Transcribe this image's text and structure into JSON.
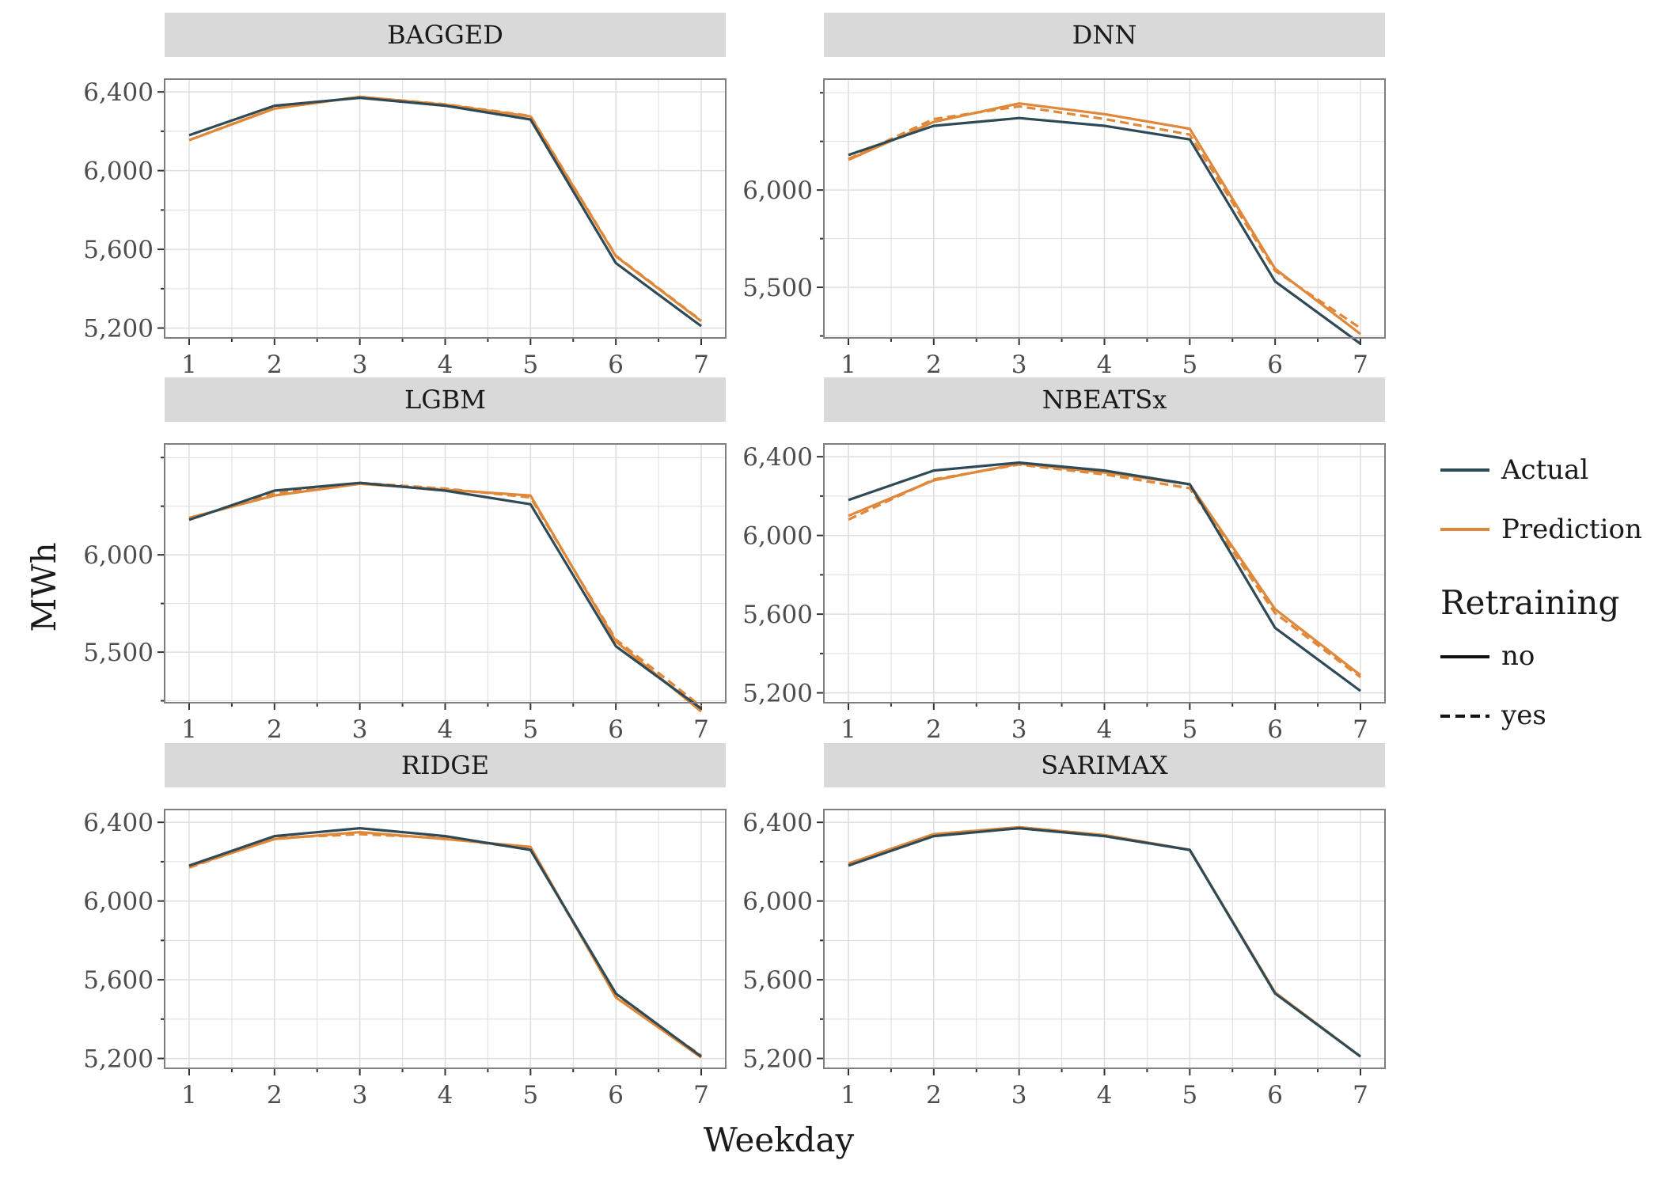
{
  "figure": {
    "xlabel": "Weekday",
    "ylabel": "MWh",
    "colors": {
      "actual": "#2e4a56",
      "prediction": "#e0883a",
      "strip": "#d9d9d9",
      "panel_border": "#7f7f7f",
      "grid": "#dedede"
    }
  },
  "legend": {
    "color_entries": [
      {
        "label": "Actual",
        "color": "#2e4a56"
      },
      {
        "label": "Prediction",
        "color": "#e0883a"
      }
    ],
    "linetype_title": "Retraining",
    "linetype_entries": [
      {
        "label": "no",
        "dash": "solid"
      },
      {
        "label": "yes",
        "dash": "dashed"
      }
    ]
  },
  "chart_data": [
    {
      "type": "line",
      "title": "BAGGED",
      "x": [
        1,
        2,
        3,
        4,
        5,
        6,
        7
      ],
      "xticks": [
        "1",
        "2",
        "3",
        "4",
        "5",
        "6",
        "7"
      ],
      "ylim": [
        5150,
        6465
      ],
      "yticks": [
        5200,
        5600,
        6000,
        6400
      ],
      "ytick_labels": [
        "5,200",
        "5,600",
        "6,000",
        "6,400"
      ],
      "series": [
        {
          "name": "Actual",
          "values": [
            6180,
            6330,
            6370,
            6330,
            6260,
            5530,
            5210
          ]
        },
        {
          "name": "Prediction",
          "retraining": "no",
          "values": [
            6155,
            6315,
            6375,
            6335,
            6275,
            5565,
            5235
          ]
        },
        {
          "name": "Prediction",
          "retraining": "yes",
          "values": [
            6155,
            6318,
            6375,
            6337,
            6278,
            5568,
            5238
          ]
        }
      ]
    },
    {
      "type": "line",
      "title": "DNN",
      "x": [
        1,
        2,
        3,
        4,
        5,
        6,
        7
      ],
      "xticks": [
        "1",
        "2",
        "3",
        "4",
        "5",
        "6",
        "7"
      ],
      "ylim": [
        5240,
        6570
      ],
      "yticks": [
        5500,
        6000
      ],
      "ytick_labels": [
        "5,500",
        "6,000"
      ],
      "series": [
        {
          "name": "Actual",
          "values": [
            6180,
            6330,
            6370,
            6330,
            6260,
            5530,
            5210
          ]
        },
        {
          "name": "Prediction",
          "retraining": "no",
          "values": [
            6155,
            6350,
            6445,
            6390,
            6315,
            5595,
            5260
          ]
        },
        {
          "name": "Prediction",
          "retraining": "yes",
          "values": [
            6160,
            6365,
            6430,
            6365,
            6285,
            5585,
            5290
          ]
        }
      ]
    },
    {
      "type": "line",
      "title": "LGBM",
      "x": [
        1,
        2,
        3,
        4,
        5,
        6,
        7
      ],
      "xticks": [
        "1",
        "2",
        "3",
        "4",
        "5",
        "6",
        "7"
      ],
      "ylim": [
        5240,
        6570
      ],
      "yticks": [
        5500,
        6000
      ],
      "ytick_labels": [
        "5,500",
        "6,000"
      ],
      "series": [
        {
          "name": "Actual",
          "values": [
            6180,
            6330,
            6370,
            6330,
            6260,
            5530,
            5210
          ]
        },
        {
          "name": "Prediction",
          "retraining": "no",
          "values": [
            6190,
            6305,
            6365,
            6335,
            6305,
            5555,
            5195
          ]
        },
        {
          "name": "Prediction",
          "retraining": "yes",
          "values": [
            6185,
            6315,
            6370,
            6340,
            6295,
            5565,
            5220
          ]
        }
      ]
    },
    {
      "type": "line",
      "title": "NBEATSx",
      "x": [
        1,
        2,
        3,
        4,
        5,
        6,
        7
      ],
      "xticks": [
        "1",
        "2",
        "3",
        "4",
        "5",
        "6",
        "7"
      ],
      "ylim": [
        5150,
        6465
      ],
      "yticks": [
        5200,
        5600,
        6000,
        6400
      ],
      "ytick_labels": [
        "5,200",
        "5,600",
        "6,000",
        "6,400"
      ],
      "series": [
        {
          "name": "Actual",
          "values": [
            6180,
            6330,
            6370,
            6330,
            6260,
            5530,
            5210
          ]
        },
        {
          "name": "Prediction",
          "retraining": "no",
          "values": [
            6100,
            6280,
            6365,
            6320,
            6260,
            5625,
            5290
          ]
        },
        {
          "name": "Prediction",
          "retraining": "yes",
          "values": [
            6080,
            6285,
            6360,
            6310,
            6240,
            5605,
            5280
          ]
        }
      ]
    },
    {
      "type": "line",
      "title": "RIDGE",
      "x": [
        1,
        2,
        3,
        4,
        5,
        6,
        7
      ],
      "xticks": [
        "1",
        "2",
        "3",
        "4",
        "5",
        "6",
        "7"
      ],
      "ylim": [
        5150,
        6465
      ],
      "yticks": [
        5200,
        5600,
        6000,
        6400
      ],
      "ytick_labels": [
        "5,200",
        "5,600",
        "6,000",
        "6,400"
      ],
      "series": [
        {
          "name": "Actual",
          "values": [
            6180,
            6330,
            6370,
            6330,
            6260,
            5530,
            5210
          ]
        },
        {
          "name": "Prediction",
          "retraining": "no",
          "values": [
            6175,
            6315,
            6350,
            6315,
            6275,
            5510,
            5205
          ]
        },
        {
          "name": "Prediction",
          "retraining": "yes",
          "values": [
            6170,
            6320,
            6340,
            6320,
            6265,
            5515,
            5215
          ]
        }
      ]
    },
    {
      "type": "line",
      "title": "SARIMAX",
      "x": [
        1,
        2,
        3,
        4,
        5,
        6,
        7
      ],
      "xticks": [
        "1",
        "2",
        "3",
        "4",
        "5",
        "6",
        "7"
      ],
      "ylim": [
        5150,
        6465
      ],
      "yticks": [
        5200,
        5600,
        6000,
        6400
      ],
      "ytick_labels": [
        "5,200",
        "5,600",
        "6,000",
        "6,400"
      ],
      "series": [
        {
          "name": "Actual",
          "values": [
            6180,
            6330,
            6370,
            6330,
            6260,
            5530,
            5210
          ]
        },
        {
          "name": "Prediction",
          "retraining": "no",
          "values": [
            6190,
            6340,
            6375,
            6335,
            6260,
            5535,
            5210
          ]
        },
        {
          "name": "Prediction",
          "retraining": "yes",
          "values": [
            6190,
            6340,
            6375,
            6335,
            6260,
            5535,
            5210
          ]
        }
      ]
    }
  ]
}
